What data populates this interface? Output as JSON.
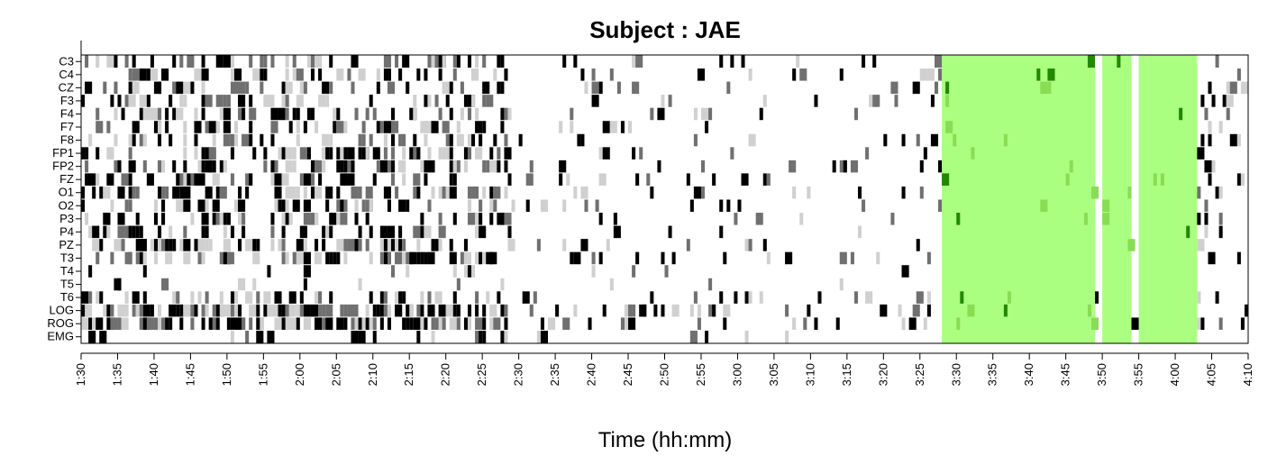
{
  "chart_data": {
    "type": "heatmap",
    "title": "Subject : JAE",
    "xlabel": "Time (hh:mm)",
    "ylabel": "",
    "x_range_minutes": [
      90,
      250
    ],
    "x_tick_labels": [
      "1:30",
      "1:35",
      "1:40",
      "1:45",
      "1:50",
      "1:55",
      "2:00",
      "2:05",
      "2:10",
      "2:15",
      "2:20",
      "2:25",
      "2:30",
      "2:35",
      "2:40",
      "2:45",
      "2:50",
      "2:55",
      "3:00",
      "3:05",
      "3:10",
      "3:15",
      "3:20",
      "3:25",
      "3:30",
      "3:35",
      "3:40",
      "3:45",
      "3:50",
      "3:55",
      "4:00",
      "4:05",
      "4:10"
    ],
    "channels": [
      "C3",
      "C4",
      "CZ",
      "F3",
      "F4",
      "F7",
      "F8",
      "FP1",
      "FP2",
      "FZ",
      "O1",
      "O2",
      "P3",
      "P4",
      "PZ",
      "T3",
      "T4",
      "T5",
      "T6",
      "LOG",
      "ROG",
      "EMG"
    ],
    "grid": false,
    "highlight_color": "#aaff80",
    "highlight_mark_color": "#228800",
    "highlighted_intervals": [
      {
        "start": "3:28",
        "end": "3:49"
      },
      {
        "start": "3:50",
        "end": "3:54"
      },
      {
        "start": "3:55",
        "end": "4:03"
      }
    ],
    "gray_levels": {
      "light": "#d0d0d0",
      "mid": "#707070",
      "dark": "#000000"
    },
    "density_profile": [
      {
        "start": "1:30",
        "end": "2:29",
        "density": 0.34
      },
      {
        "start": "2:29",
        "end": "2:30",
        "density": 0.02
      },
      {
        "start": "2:30",
        "end": "3:00",
        "density": 0.09
      },
      {
        "start": "3:00",
        "end": "3:28",
        "density": 0.07
      },
      {
        "start": "3:28",
        "end": "4:03",
        "density": 0.02
      },
      {
        "start": "4:03",
        "end": "4:10",
        "density": 0.12
      }
    ]
  }
}
